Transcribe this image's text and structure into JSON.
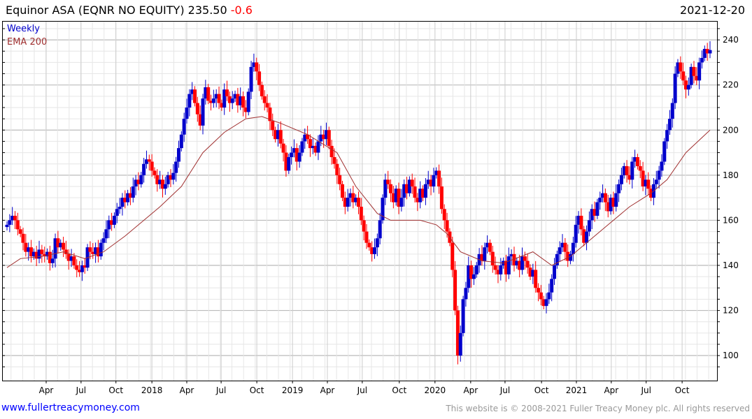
{
  "header": {
    "title": "Equinor ASA (EQNR NO EQUITY) 235.50",
    "change": "-0.6",
    "date": "2021-12-20"
  },
  "footer": {
    "link": "www.fullertreacymoney.com",
    "copyright": "This website is © 2008-2021 Fuller Treacy Money plc. All rights reserved"
  },
  "colors": {
    "up": "#0000cc",
    "down": "#ff0000",
    "ema": "#a03030",
    "change": "#ff0000"
  },
  "chart_data": {
    "type": "candlestick",
    "title": "Equinor ASA (EQNR NO EQUITY)",
    "legend": [
      {
        "label": "Weekly",
        "color": "#0000cc"
      },
      {
        "label": "EMA 200",
        "color": "#a03030"
      }
    ],
    "legend_placement": "top-left",
    "ylim": [
      88.9,
      248.4
    ],
    "yticks": [
      100,
      120,
      140,
      160,
      180,
      200,
      220,
      240
    ],
    "first_open": 157,
    "closes": [
      158,
      160,
      162,
      160,
      156,
      154,
      150,
      146,
      148,
      144,
      146,
      143,
      147,
      145,
      144,
      146,
      141,
      143,
      152,
      148,
      150,
      147,
      145,
      142,
      144,
      140,
      138,
      137,
      140,
      139,
      148,
      146,
      145,
      148,
      144,
      150,
      152,
      156,
      160,
      158,
      162,
      165,
      166,
      170,
      168,
      172,
      170,
      175,
      178,
      176,
      180,
      185,
      187,
      186,
      182,
      180,
      176,
      178,
      174,
      176,
      180,
      178,
      181,
      186,
      192,
      198,
      205,
      210,
      216,
      218,
      212,
      207,
      202,
      214,
      219,
      213,
      212,
      214,
      216,
      212,
      210,
      218,
      215,
      212,
      214,
      216,
      211,
      215,
      210,
      208,
      217,
      228,
      230,
      226,
      220,
      215,
      212,
      210,
      204,
      200,
      196,
      200,
      194,
      190,
      182,
      188,
      190,
      192,
      186,
      190,
      195,
      198,
      196,
      192,
      193,
      190,
      195,
      198,
      196,
      200,
      193,
      188,
      185,
      180,
      176,
      170,
      166,
      170,
      172,
      168,
      170,
      166,
      160,
      155,
      150,
      148,
      145,
      148,
      152,
      160,
      170,
      178,
      176,
      172,
      168,
      174,
      166,
      170,
      176,
      172,
      178,
      175,
      170,
      168,
      174,
      170,
      176,
      178,
      175,
      180,
      182,
      175,
      165,
      160,
      155,
      150,
      138,
      120,
      100,
      110,
      125,
      130,
      140,
      134,
      136,
      140,
      145,
      142,
      148,
      150,
      146,
      140,
      138,
      136,
      140,
      142,
      136,
      144,
      145,
      140,
      142,
      138,
      144,
      142,
      139,
      135,
      138,
      130,
      128,
      125,
      122,
      125,
      128,
      134,
      140,
      145,
      148,
      150,
      146,
      142,
      145,
      150,
      158,
      162,
      156,
      150,
      155,
      160,
      165,
      162,
      168,
      170,
      172,
      168,
      164,
      170,
      166,
      172,
      176,
      180,
      184,
      180,
      178,
      186,
      188,
      184,
      182,
      175,
      178,
      174,
      170,
      176,
      178,
      182,
      186,
      195,
      200,
      205,
      212,
      225,
      230,
      226,
      222,
      218,
      220,
      228,
      224,
      222,
      230,
      232,
      236,
      234,
      235.5
    ],
    "ema_200": [
      [
        0,
        139
      ],
      [
        5,
        143
      ],
      [
        13,
        144
      ],
      [
        21,
        146
      ],
      [
        29,
        143
      ],
      [
        36,
        146
      ],
      [
        44,
        153
      ],
      [
        57,
        166
      ],
      [
        65,
        175
      ],
      [
        73,
        190
      ],
      [
        81,
        199
      ],
      [
        89,
        205
      ],
      [
        95,
        206
      ],
      [
        102,
        203
      ],
      [
        112,
        198
      ],
      [
        123,
        190
      ],
      [
        130,
        175
      ],
      [
        138,
        163
      ],
      [
        143,
        160
      ],
      [
        154,
        160
      ],
      [
        160,
        158
      ],
      [
        164,
        154
      ],
      [
        169,
        146
      ],
      [
        177,
        142
      ],
      [
        185,
        141
      ],
      [
        196,
        146
      ],
      [
        203,
        140
      ],
      [
        210,
        144
      ],
      [
        216,
        150
      ],
      [
        224,
        158
      ],
      [
        232,
        166
      ],
      [
        240,
        172
      ],
      [
        246,
        178
      ],
      [
        253,
        190
      ],
      [
        262,
        200
      ]
    ],
    "xticks": [
      {
        "label": "Apr",
        "week": 14.6
      },
      {
        "label": "Jul",
        "week": 27.6
      },
      {
        "label": "Oct",
        "week": 40.6
      },
      {
        "label": "2018",
        "week": 54
      },
      {
        "label": "Apr",
        "week": 67
      },
      {
        "label": "Jul",
        "week": 79.8
      },
      {
        "label": "Oct",
        "week": 93.1
      },
      {
        "label": "2019",
        "week": 106.4
      },
      {
        "label": "Apr",
        "week": 119.4
      },
      {
        "label": "Jul",
        "week": 132.4
      },
      {
        "label": "Oct",
        "week": 146.2
      },
      {
        "label": "2020",
        "week": 159.5
      },
      {
        "label": "Apr",
        "week": 172.8
      },
      {
        "label": "Jul",
        "week": 185.6
      },
      {
        "label": "Oct",
        "week": 199.2
      },
      {
        "label": "2021",
        "week": 212.2
      },
      {
        "label": "Apr",
        "week": 225.2
      },
      {
        "label": "Jul",
        "week": 238.2
      },
      {
        "label": "Oct",
        "week": 251.6
      }
    ]
  }
}
